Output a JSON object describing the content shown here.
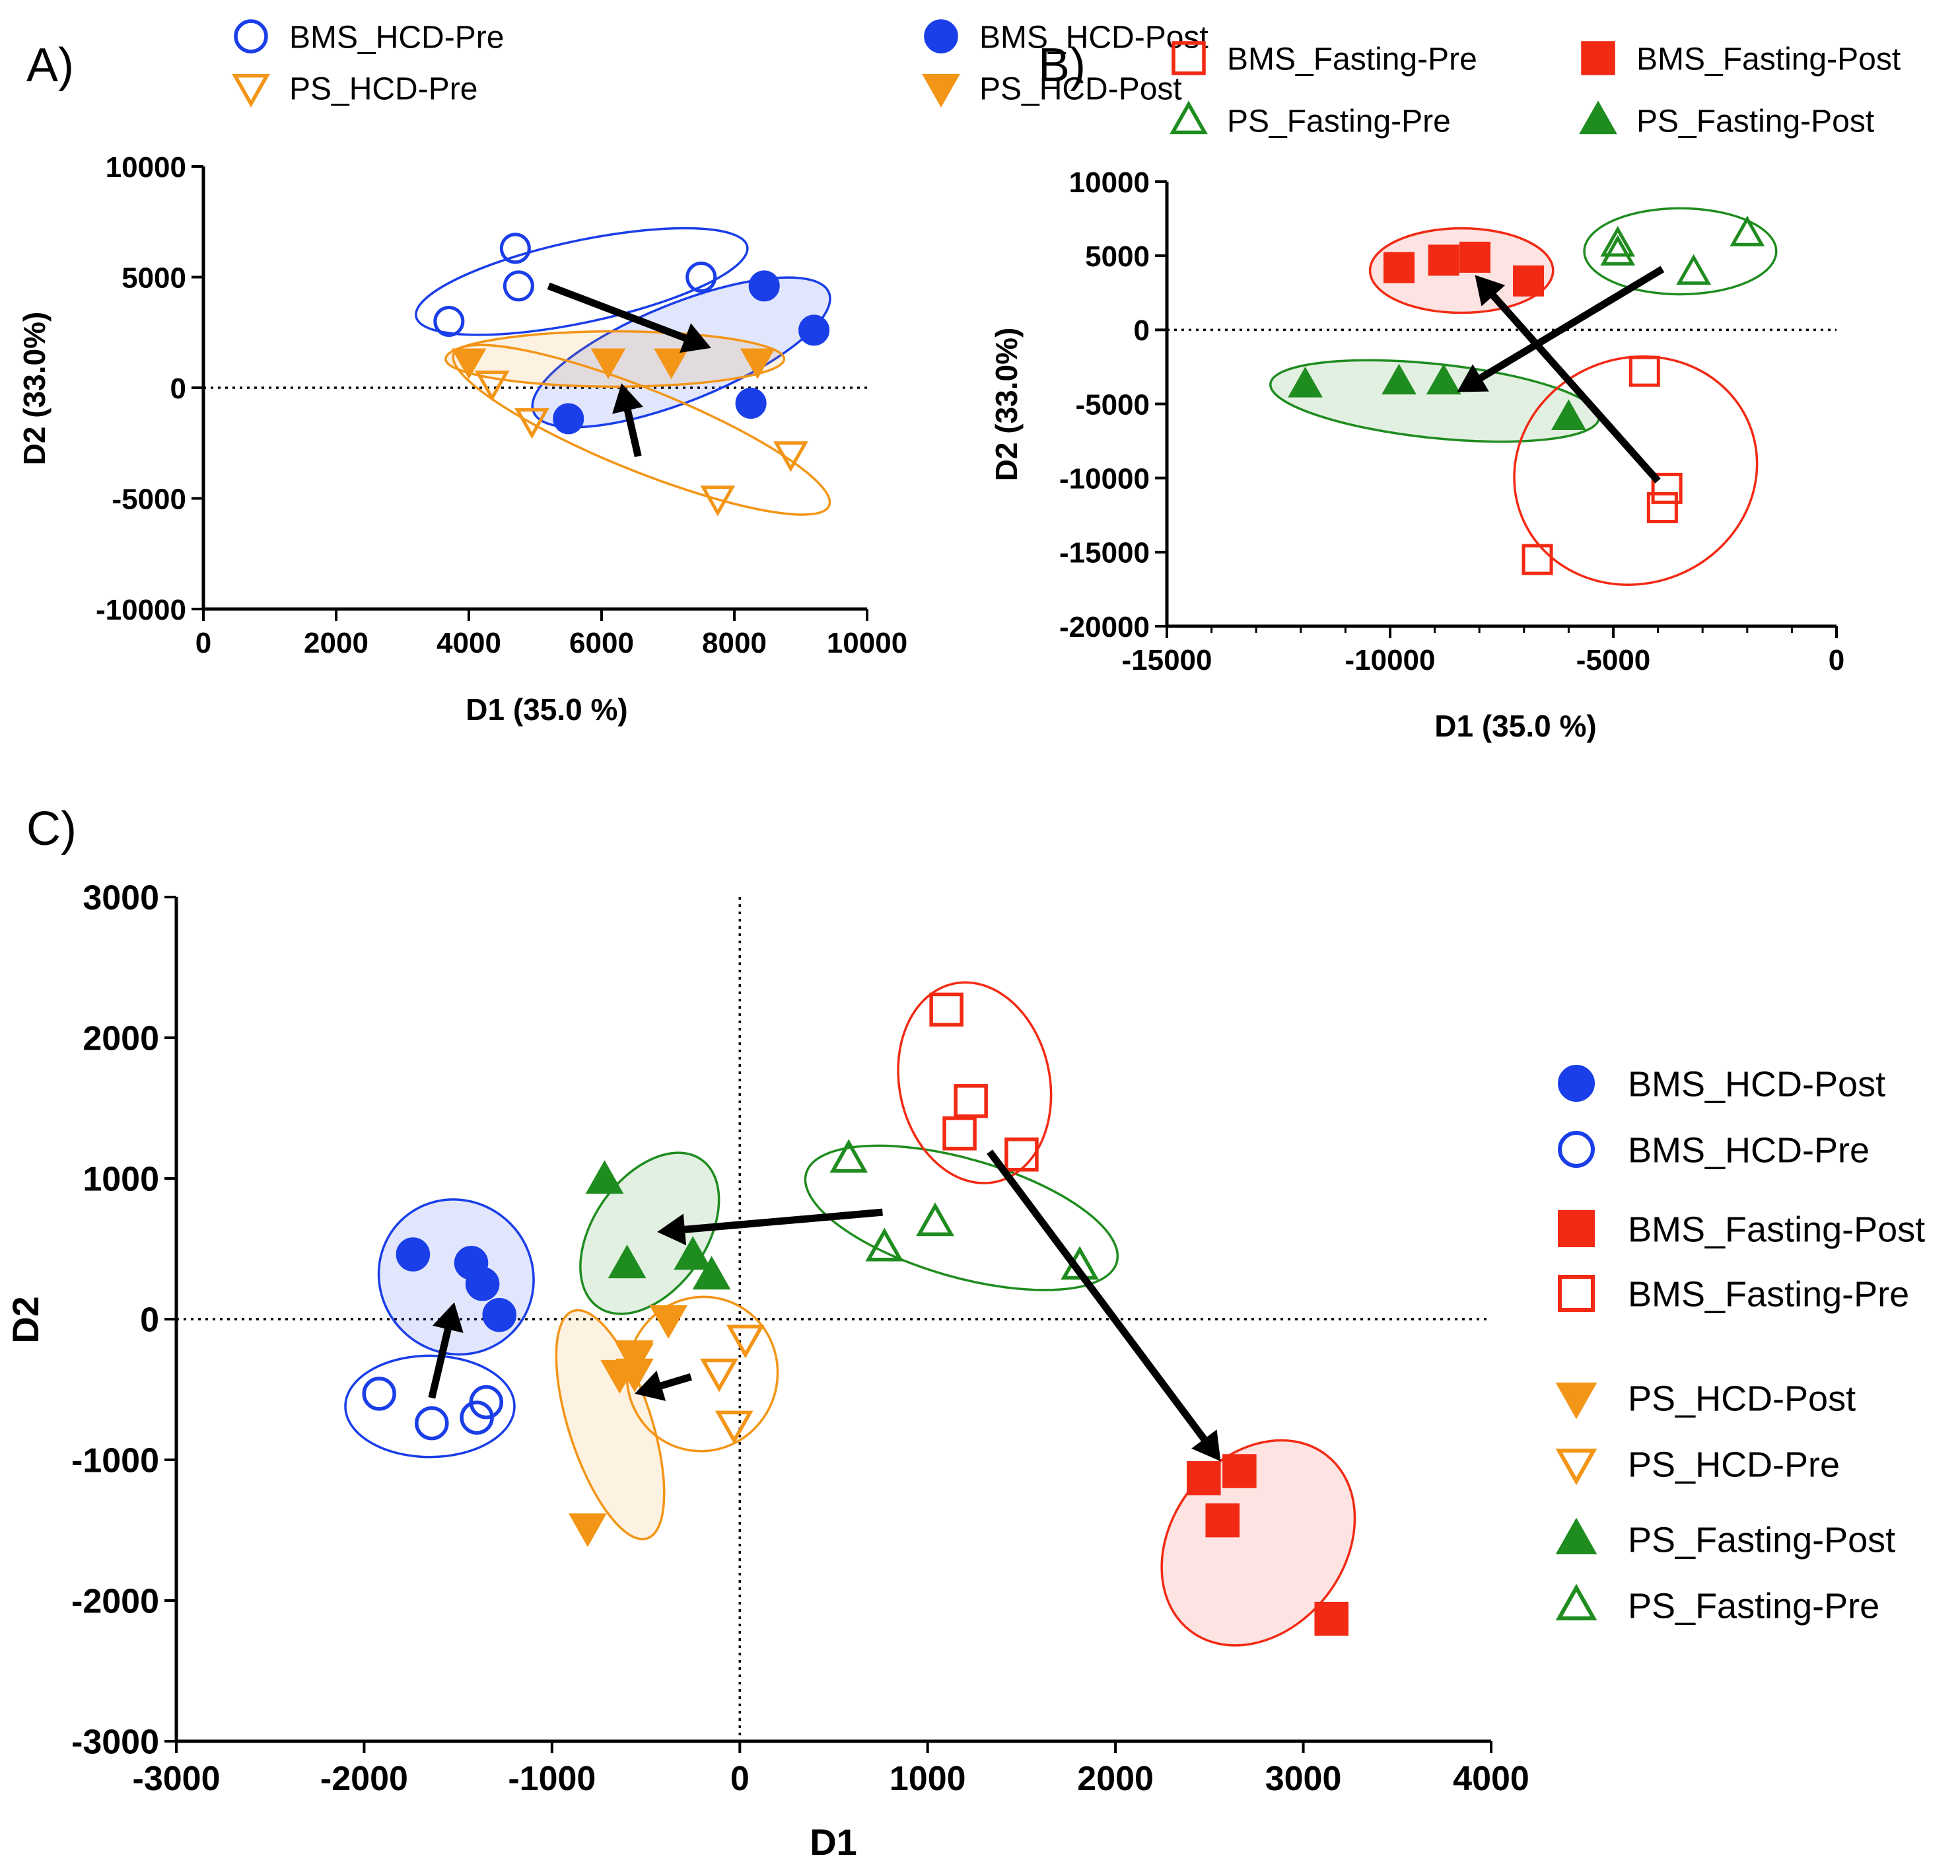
{
  "styles": {
    "BMS_HCD-Pre": {
      "shape": "circle",
      "filled": false,
      "color": "#1a3ee8"
    },
    "BMS_HCD-Post": {
      "shape": "circle",
      "filled": true,
      "color": "#1a3ee8"
    },
    "PS_HCD-Pre": {
      "shape": "triangle-down",
      "filled": false,
      "color": "#f39516"
    },
    "PS_HCD-Post": {
      "shape": "triangle-down",
      "filled": true,
      "color": "#f39516"
    },
    "BMS_Fasting-Pre": {
      "shape": "square",
      "filled": false,
      "color": "#f22a14"
    },
    "BMS_Fasting-Post": {
      "shape": "square",
      "filled": true,
      "color": "#f22a14"
    },
    "PS_Fasting-Pre": {
      "shape": "triangle-up",
      "filled": false,
      "color": "#1f8c1f"
    },
    "PS_Fasting-Post": {
      "shape": "triangle-up",
      "filled": true,
      "color": "#1f8c1f"
    }
  },
  "chart_data": [
    {
      "id": "A",
      "panel_label": "A)",
      "type": "scatter",
      "xlabel": "D1 (35.0 %)",
      "ylabel": "D2 (33.0%)",
      "xlim": [
        0,
        10000
      ],
      "ylim": [
        -10000,
        10000
      ],
      "xticks": [
        0,
        2000,
        4000,
        6000,
        8000,
        10000
      ],
      "yticks": [
        -10000,
        -5000,
        0,
        5000,
        10000
      ],
      "x_minor_step": 0,
      "y_minor_step": 0,
      "legend": [
        "BMS_HCD-Pre",
        "BMS_HCD-Post",
        "PS_HCD-Pre",
        "PS_HCD-Post"
      ],
      "series": [
        {
          "name": "BMS_HCD-Pre",
          "points": [
            [
              3700,
              3000
            ],
            [
              4700,
              6300
            ],
            [
              4750,
              4600
            ],
            [
              7500,
              5000
            ]
          ]
        },
        {
          "name": "BMS_HCD-Post",
          "points": [
            [
              5500,
              -1400
            ],
            [
              8250,
              -700
            ],
            [
              8450,
              4600
            ],
            [
              9200,
              2600
            ]
          ]
        },
        {
          "name": "PS_HCD-Pre",
          "points": [
            [
              4350,
              200
            ],
            [
              4950,
              -1500
            ],
            [
              7750,
              -5000
            ],
            [
              8850,
              -3000
            ]
          ]
        },
        {
          "name": "PS_HCD-Post",
          "points": [
            [
              4000,
              1200
            ],
            [
              6100,
              1200
            ],
            [
              7050,
              1200
            ],
            [
              8350,
              1200
            ]
          ]
        }
      ],
      "ellipses": [
        {
          "group": "BMS_HCD-Pre",
          "cx": 5700,
          "cy": 4800,
          "rx": 2550,
          "ry": 1850,
          "angle": 12,
          "filled": false
        },
        {
          "group": "BMS_HCD-Post",
          "cx": 7200,
          "cy": 1600,
          "rx": 2400,
          "ry": 2200,
          "angle": 22,
          "filled": true
        },
        {
          "group": "PS_HCD-Post",
          "cx": 6200,
          "cy": 1300,
          "rx": 2550,
          "ry": 1250,
          "angle": 0,
          "filled": true
        },
        {
          "group": "PS_HCD-Pre",
          "cx": 6600,
          "cy": -1900,
          "rx": 3050,
          "ry": 1850,
          "angle": -22,
          "filled": false
        }
      ],
      "arrows": [
        {
          "from": [
            5200,
            4600
          ],
          "to": [
            7650,
            1800
          ]
        },
        {
          "from": [
            6550,
            -3100
          ],
          "to": [
            6300,
            200
          ]
        }
      ]
    },
    {
      "id": "B",
      "panel_label": "B)",
      "type": "scatter",
      "xlabel": "D1 (35.0 %)",
      "ylabel": "D2 (33.0%)",
      "xlim": [
        -15000,
        0
      ],
      "ylim": [
        -20000,
        10000
      ],
      "xticks": [
        -15000,
        -10000,
        -5000,
        0
      ],
      "yticks": [
        -20000,
        -15000,
        -10000,
        -5000,
        0,
        5000,
        10000
      ],
      "x_minor_step": 1000,
      "y_minor_step": 0,
      "legend": [
        "BMS_Fasting-Pre",
        "BMS_Fasting-Post",
        "PS_Fasting-Pre",
        "PS_Fasting-Post"
      ],
      "series": [
        {
          "name": "BMS_Fasting-Pre",
          "points": [
            [
              -4300,
              -2800
            ],
            [
              -3800,
              -10700
            ],
            [
              -3900,
              -12000
            ],
            [
              -6700,
              -15500
            ]
          ]
        },
        {
          "name": "BMS_Fasting-Post",
          "points": [
            [
              -9800,
              4200
            ],
            [
              -8800,
              4700
            ],
            [
              -8100,
              4900
            ],
            [
              -6900,
              3300
            ]
          ]
        },
        {
          "name": "PS_Fasting-Pre",
          "points": [
            [
              -4900,
              5800
            ],
            [
              -4900,
              5200
            ],
            [
              -3200,
              3900
            ],
            [
              -2000,
              6500
            ]
          ]
        },
        {
          "name": "PS_Fasting-Post",
          "points": [
            [
              -11900,
              -3700
            ],
            [
              -9800,
              -3500
            ],
            [
              -8800,
              -3500
            ],
            [
              -6000,
              -5900
            ]
          ]
        }
      ],
      "ellipses": [
        {
          "group": "BMS_Fasting-Post",
          "cx": -8400,
          "cy": 4000,
          "rx": 2050,
          "ry": 2850,
          "angle": 0,
          "filled": true
        },
        {
          "group": "PS_Fasting-Pre",
          "cx": -3500,
          "cy": 5300,
          "rx": 2150,
          "ry": 2900,
          "angle": 0,
          "filled": false
        },
        {
          "group": "PS_Fasting-Post",
          "cx": -9000,
          "cy": -4800,
          "rx": 3700,
          "ry": 2500,
          "angle": -6,
          "filled": true
        },
        {
          "group": "BMS_Fasting-Pre",
          "cx": -4500,
          "cy": -9500,
          "rx": 2750,
          "ry": 7600,
          "angle": 22,
          "filled": false
        }
      ],
      "arrows": [
        {
          "from": [
            -4000,
            -10200
          ],
          "to": [
            -8100,
            3700
          ]
        },
        {
          "from": [
            -3900,
            4100
          ],
          "to": [
            -8500,
            -4200
          ]
        }
      ]
    },
    {
      "id": "C",
      "panel_label": "C)",
      "type": "scatter",
      "xlabel": "D1",
      "ylabel": "D2",
      "xlim": [
        -3000,
        4000
      ],
      "ylim": [
        -3000,
        3000
      ],
      "xticks": [
        -3000,
        -2000,
        -1000,
        0,
        1000,
        2000,
        3000,
        4000
      ],
      "yticks": [
        -3000,
        -2000,
        -1000,
        0,
        1000,
        2000,
        3000
      ],
      "x_minor_step": 0,
      "y_minor_step": 0,
      "legend": [
        "BMS_HCD-Post",
        "BMS_HCD-Pre",
        "BMS_Fasting-Post",
        "BMS_Fasting-Pre",
        "PS_HCD-Post",
        "PS_HCD-Pre",
        "PS_Fasting-Post",
        "PS_Fasting-Pre"
      ],
      "series": [
        {
          "name": "BMS_HCD-Post",
          "points": [
            [
              -1740,
              460
            ],
            [
              -1430,
              400
            ],
            [
              -1370,
              250
            ],
            [
              -1280,
              30
            ]
          ]
        },
        {
          "name": "BMS_HCD-Pre",
          "points": [
            [
              -1920,
              -530
            ],
            [
              -1640,
              -740
            ],
            [
              -1400,
              -700
            ],
            [
              -1350,
              -590
            ]
          ]
        },
        {
          "name": "BMS_Fasting-Post",
          "points": [
            [
              2470,
              -1130
            ],
            [
              2660,
              -1080
            ],
            [
              2570,
              -1430
            ],
            [
              3150,
              -2130
            ]
          ]
        },
        {
          "name": "BMS_Fasting-Pre",
          "points": [
            [
              1100,
              2200
            ],
            [
              1230,
              1550
            ],
            [
              1170,
              1320
            ],
            [
              1500,
              1170
            ]
          ]
        },
        {
          "name": "PS_HCD-Post",
          "points": [
            [
              -810,
              -1480
            ],
            [
              -640,
              -390
            ],
            [
              -560,
              -380
            ],
            [
              -560,
              -250
            ],
            [
              -380,
              0
            ]
          ]
        },
        {
          "name": "PS_HCD-Pre",
          "points": [
            [
              -560,
              -270
            ],
            [
              -110,
              -380
            ],
            [
              30,
              -140
            ],
            [
              -30,
              -750
            ]
          ]
        },
        {
          "name": "PS_Fasting-Post",
          "points": [
            [
              -720,
              990
            ],
            [
              -600,
              390
            ],
            [
              -250,
              450
            ],
            [
              -150,
              310
            ]
          ]
        },
        {
          "name": "PS_Fasting-Pre",
          "points": [
            [
              580,
              1140
            ],
            [
              770,
              510
            ],
            [
              1040,
              690
            ],
            [
              1810,
              380
            ]
          ]
        }
      ],
      "ellipses": [
        {
          "group": "BMS_HCD-Post",
          "cx": -1510,
          "cy": 300,
          "rx": 420,
          "ry": 540,
          "angle": -45,
          "filled": true
        },
        {
          "group": "BMS_HCD-Pre",
          "cx": -1650,
          "cy": -620,
          "rx": 450,
          "ry": 360,
          "angle": 0,
          "filled": false
        },
        {
          "group": "PS_Fasting-Post",
          "cx": -480,
          "cy": 610,
          "rx": 300,
          "ry": 640,
          "angle": -35,
          "filled": true
        },
        {
          "group": "PS_HCD-Post",
          "cx": -690,
          "cy": -750,
          "rx": 220,
          "ry": 850,
          "angle": 18,
          "filled": true
        },
        {
          "group": "PS_HCD-Pre",
          "cx": -200,
          "cy": -390,
          "rx": 400,
          "ry": 550,
          "angle": -20,
          "filled": false
        },
        {
          "group": "PS_Fasting-Pre",
          "cx": 1180,
          "cy": 720,
          "rx": 860,
          "ry": 420,
          "angle": -16,
          "filled": false
        },
        {
          "group": "BMS_Fasting-Pre",
          "cx": 1250,
          "cy": 1680,
          "rx": 400,
          "ry": 720,
          "angle": 12,
          "filled": false
        },
        {
          "group": "BMS_Fasting-Post",
          "cx": 2760,
          "cy": -1590,
          "rx": 460,
          "ry": 790,
          "angle": -38,
          "filled": true
        }
      ],
      "arrows": [
        {
          "from": [
            -1640,
            -560
          ],
          "to": [
            -1520,
            120
          ]
        },
        {
          "from": [
            760,
            760
          ],
          "to": [
            -440,
            620
          ]
        },
        {
          "from": [
            -260,
            -410
          ],
          "to": [
            -560,
            -530
          ]
        },
        {
          "from": [
            1330,
            1190
          ],
          "to": [
            2560,
            -1010
          ]
        }
      ]
    }
  ]
}
